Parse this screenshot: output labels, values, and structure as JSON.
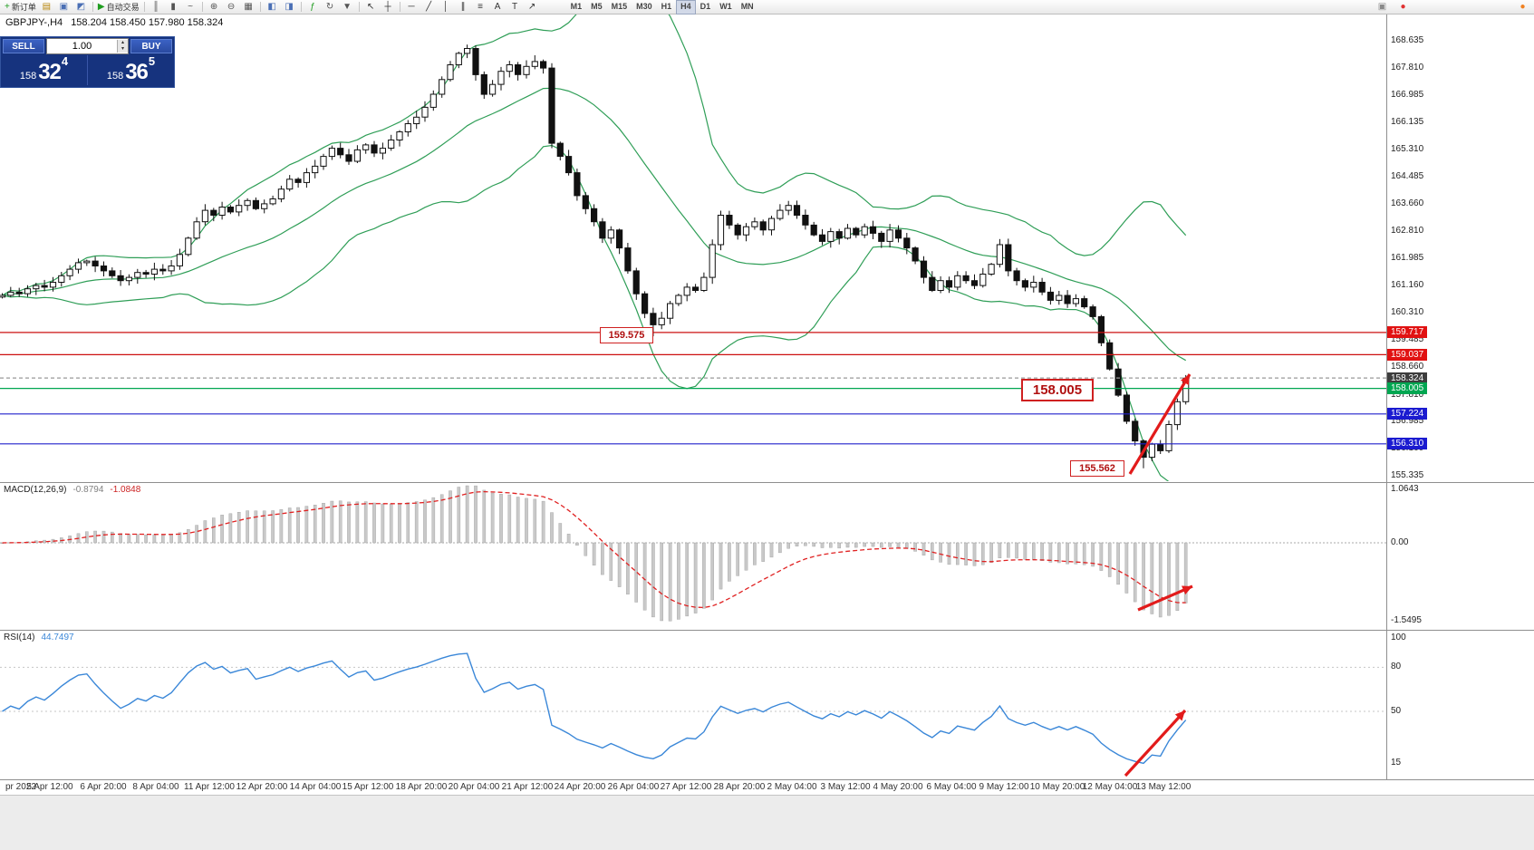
{
  "toolbar": {
    "groups": [
      {
        "items": [
          {
            "n": "new-order-button",
            "g": "+",
            "t": "新订单",
            "c": "#1f9d1f"
          },
          {
            "n": "history-center-button",
            "g": "▤",
            "c": "#b8860b"
          },
          {
            "n": "profiles-button",
            "g": "▣",
            "c": "#4a6fb5"
          },
          {
            "n": "alerts-button",
            "g": "◩",
            "c": "#4a6fb5"
          }
        ]
      },
      {
        "items": [
          {
            "n": "autotrading-button",
            "g": "▶",
            "t": "自动交易",
            "c": "#1f9d1f"
          }
        ]
      },
      {
        "items": [
          {
            "n": "bar-chart-button",
            "g": "║",
            "c": "#555555"
          },
          {
            "n": "candlestick-chart-button",
            "g": "▮",
            "c": "#555555"
          },
          {
            "n": "line-chart-button",
            "g": "~",
            "c": "#555555"
          }
        ]
      },
      {
        "items": [
          {
            "n": "zoom-in-button",
            "g": "⊕",
            "c": "#555555"
          },
          {
            "n": "zoom-out-button",
            "g": "⊖",
            "c": "#555555"
          },
          {
            "n": "tile-windows-button",
            "g": "▦",
            "c": "#555555"
          }
        ]
      },
      {
        "items": [
          {
            "n": "new-chart-button",
            "g": "◧",
            "c": "#4a6fb5"
          },
          {
            "n": "chart-shift-button",
            "g": "◨",
            "c": "#4a6fb5"
          }
        ]
      },
      {
        "items": [
          {
            "n": "indicators-button",
            "g": "ƒ",
            "c": "#1f9d1f"
          },
          {
            "n": "periods-button",
            "g": "↻",
            "c": "#555555"
          },
          {
            "n": "templates-button",
            "g": "▼",
            "c": "#555555"
          }
        ]
      },
      {
        "items": [
          {
            "n": "cursor-button",
            "g": "↖",
            "c": "#333333"
          },
          {
            "n": "crosshair-button",
            "g": "┼",
            "c": "#333333"
          }
        ]
      },
      {
        "items": [
          {
            "n": "horizontal-line-button",
            "g": "─",
            "c": "#333333"
          },
          {
            "n": "trendline-button",
            "g": "╱",
            "c": "#333333"
          },
          {
            "n": "vertical-line-button",
            "g": "│",
            "c": "#333333"
          },
          {
            "n": "equidistant-channel-button",
            "g": "∥",
            "c": "#333333"
          },
          {
            "n": "fibonacci-button",
            "g": "≡",
            "c": "#333333"
          },
          {
            "n": "text-button",
            "g": "A",
            "c": "#333333"
          },
          {
            "n": "text-label-button",
            "g": "T",
            "c": "#333333"
          },
          {
            "n": "arrows-button",
            "g": "↗",
            "c": "#333333"
          }
        ]
      }
    ],
    "timeframes": [
      "M1",
      "M5",
      "M15",
      "M30",
      "H1",
      "H4",
      "D1",
      "W1",
      "MN"
    ],
    "active_timeframe": "H4",
    "right_icons": [
      {
        "n": "chat-icon",
        "g": "▣",
        "c": "#8a8a8a"
      },
      {
        "n": "community-badge-icon",
        "g": "●",
        "c": "#e03030"
      }
    ],
    "far_icon": {
      "n": "notification-badge-icon",
      "g": "●",
      "c": "#f08020"
    }
  },
  "chart": {
    "symbol": "GBPJPY-,H4",
    "ohlc": "158.204 158.450 157.980 158.324"
  },
  "trade_panel": {
    "sell_label": "SELL",
    "buy_label": "BUY",
    "volume": "1.00",
    "spinner_up": "▴",
    "spinner_down": "▾",
    "sell_prefix": "158",
    "sell_big": "32",
    "sell_sup": "4",
    "buy_prefix": "158",
    "buy_big": "36",
    "buy_sup": "5"
  },
  "callouts": {
    "low_april": "159.575",
    "key_level": "158.005",
    "low_may": "155.562"
  },
  "price_axis": {
    "labels": [
      "168.635",
      "167.810",
      "166.985",
      "166.135",
      "165.310",
      "164.485",
      "163.660",
      "162.810",
      "161.985",
      "161.160",
      "160.310",
      "159.485",
      "158.660",
      "157.810",
      "156.985",
      "156.160",
      "155.335"
    ],
    "markers": [
      {
        "value": "159.717",
        "color": "#e11212"
      },
      {
        "value": "159.037",
        "color": "#e11212"
      },
      {
        "value": "158.324",
        "color": "#3d3d3d"
      },
      {
        "value": "158.005",
        "color": "#00a651"
      },
      {
        "value": "157.224",
        "color": "#1b1bd0"
      },
      {
        "value": "156.310",
        "color": "#1b1bd0"
      }
    ]
  },
  "levels": [
    {
      "price": 159.717,
      "color": "#cc1111"
    },
    {
      "price": 159.037,
      "color": "#cc1111"
    },
    {
      "price": 158.324,
      "color": "#999999",
      "dash": "4 3"
    },
    {
      "price": 158.005,
      "color": "#00a651"
    },
    {
      "price": 157.224,
      "color": "#2020cc"
    },
    {
      "price": 156.31,
      "color": "#2020cc"
    }
  ],
  "macd_panel": {
    "name": "MACD(12,26,9)",
    "value_main": "-0.8794",
    "value_signal": "-1.0848",
    "axis": [
      "1.0643",
      "0.00",
      "-1.5495"
    ]
  },
  "rsi_panel": {
    "name": "RSI(14)",
    "value": "44.7497",
    "axis": [
      "100",
      "80",
      "50",
      "15"
    ],
    "levels": [
      80,
      50
    ]
  },
  "time_axis": {
    "labels": [
      "pr 2022",
      "5 Apr 12:00",
      "6 Apr 20:00",
      "8 Apr 04:00",
      "11 Apr 12:00",
      "12 Apr 20:00",
      "14 Apr 04:00",
      "15 Apr 12:00",
      "18 Apr 20:00",
      "20 Apr 04:00",
      "21 Apr 12:00",
      "24 Apr 20:00",
      "26 Apr 04:00",
      "27 Apr 12:00",
      "28 Apr 20:00",
      "2 May 04:00",
      "3 May 12:00",
      "4 May 20:00",
      "6 May 04:00",
      "9 May 12:00",
      "10 May 20:00",
      "12 May 04:00",
      "13 May 12:00"
    ]
  },
  "colors": {
    "bollinger": "#2f9e57",
    "rsi": "#3a87d8",
    "macd_hist": "#c9c9c9",
    "macd_signal": "#e02222",
    "arrow": "#e21b1b",
    "bull": "#ffffff",
    "bear": "#111111"
  },
  "chart_data": {
    "type": "candlestick",
    "symbol": "GBPJPY",
    "timeframe": "H4",
    "first_open": 160.8,
    "closes": [
      160.85,
      160.95,
      160.9,
      161.05,
      161.15,
      161.1,
      161.25,
      161.45,
      161.65,
      161.85,
      161.9,
      161.75,
      161.6,
      161.45,
      161.3,
      161.4,
      161.55,
      161.5,
      161.65,
      161.6,
      161.75,
      162.1,
      162.6,
      163.1,
      163.45,
      163.3,
      163.55,
      163.4,
      163.6,
      163.75,
      163.5,
      163.65,
      163.8,
      164.1,
      164.4,
      164.3,
      164.6,
      164.8,
      165.1,
      165.35,
      165.15,
      164.95,
      165.3,
      165.45,
      165.2,
      165.35,
      165.6,
      165.85,
      166.1,
      166.3,
      166.6,
      167.0,
      167.45,
      167.9,
      168.25,
      168.4,
      167.6,
      167.0,
      167.3,
      167.7,
      167.9,
      167.6,
      167.85,
      168.0,
      167.8,
      165.5,
      165.1,
      164.6,
      163.9,
      163.5,
      163.1,
      162.6,
      162.85,
      162.3,
      161.6,
      160.9,
      160.3,
      159.95,
      160.15,
      160.6,
      160.85,
      161.1,
      161.0,
      161.4,
      162.4,
      163.3,
      163.0,
      162.7,
      162.95,
      163.1,
      162.85,
      163.2,
      163.45,
      163.6,
      163.3,
      163.0,
      162.7,
      162.5,
      162.8,
      162.6,
      162.9,
      162.7,
      162.95,
      162.75,
      162.5,
      162.85,
      162.6,
      162.3,
      161.9,
      161.4,
      161.0,
      161.3,
      161.1,
      161.45,
      161.3,
      161.15,
      161.5,
      161.8,
      162.4,
      161.6,
      161.3,
      161.1,
      161.25,
      160.95,
      160.7,
      160.85,
      160.6,
      160.75,
      160.5,
      160.2,
      159.4,
      158.6,
      157.8,
      157.0,
      156.4,
      155.9,
      156.3,
      156.1,
      156.9,
      157.6,
      158.32
    ],
    "wick_overrides": {
      "55": {
        "high": 168.52
      },
      "77": {
        "low": 159.6
      },
      "135": {
        "low": 155.562
      }
    },
    "bollinger": {
      "period": 20,
      "deviation": 2
    },
    "macd": {
      "fast": 12,
      "slow": 26,
      "signal": 9
    },
    "rsi": {
      "period": 14
    }
  }
}
